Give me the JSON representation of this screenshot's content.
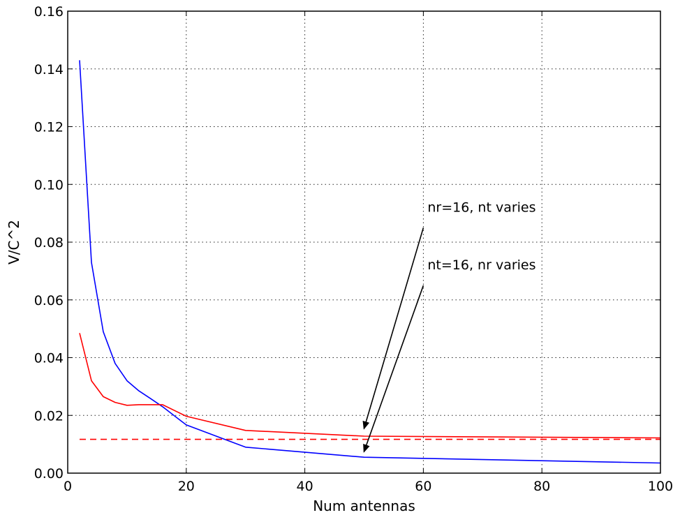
{
  "chart_data": {
    "type": "line",
    "xlabel": "Num antennas",
    "ylabel": "V/C^2",
    "xlim": [
      0,
      100
    ],
    "ylim": [
      0,
      0.16
    ],
    "x_ticks": [
      "0",
      "20",
      "40",
      "60",
      "80",
      "100"
    ],
    "y_ticks": [
      "0.00",
      "0.02",
      "0.04",
      "0.06",
      "0.08",
      "0.10",
      "0.12",
      "0.14",
      "0.16"
    ],
    "grid": true,
    "series": [
      {
        "color": "#0000ff",
        "style": "solid",
        "x": [
          2,
          4,
          6,
          8,
          10,
          12,
          14,
          16,
          20,
          30,
          50,
          100
        ],
        "y": [
          0.143,
          0.073,
          0.049,
          0.038,
          0.032,
          0.0285,
          0.0258,
          0.023,
          0.0167,
          0.009,
          0.0055,
          0.0035
        ]
      },
      {
        "color": "#ff0000",
        "style": "solid",
        "x": [
          2,
          4,
          6,
          8,
          10,
          12,
          14,
          16,
          20,
          30,
          50,
          100
        ],
        "y": [
          0.0485,
          0.032,
          0.0265,
          0.0245,
          0.0235,
          0.0237,
          0.0237,
          0.0237,
          0.0197,
          0.0148,
          0.0128,
          0.0122
        ]
      },
      {
        "color": "#ff0000",
        "style": "dashed",
        "x": [
          2,
          100
        ],
        "y": [
          0.0117,
          0.0117
        ]
      }
    ],
    "annotations": [
      {
        "text": "nr=16, nt varies",
        "xy": [
          50,
          0.0155
        ],
        "xytext": [
          60,
          0.085
        ]
      },
      {
        "text": "nt=16, nr varies",
        "xy": [
          50,
          0.0075
        ],
        "xytext": [
          60,
          0.065
        ]
      }
    ]
  }
}
